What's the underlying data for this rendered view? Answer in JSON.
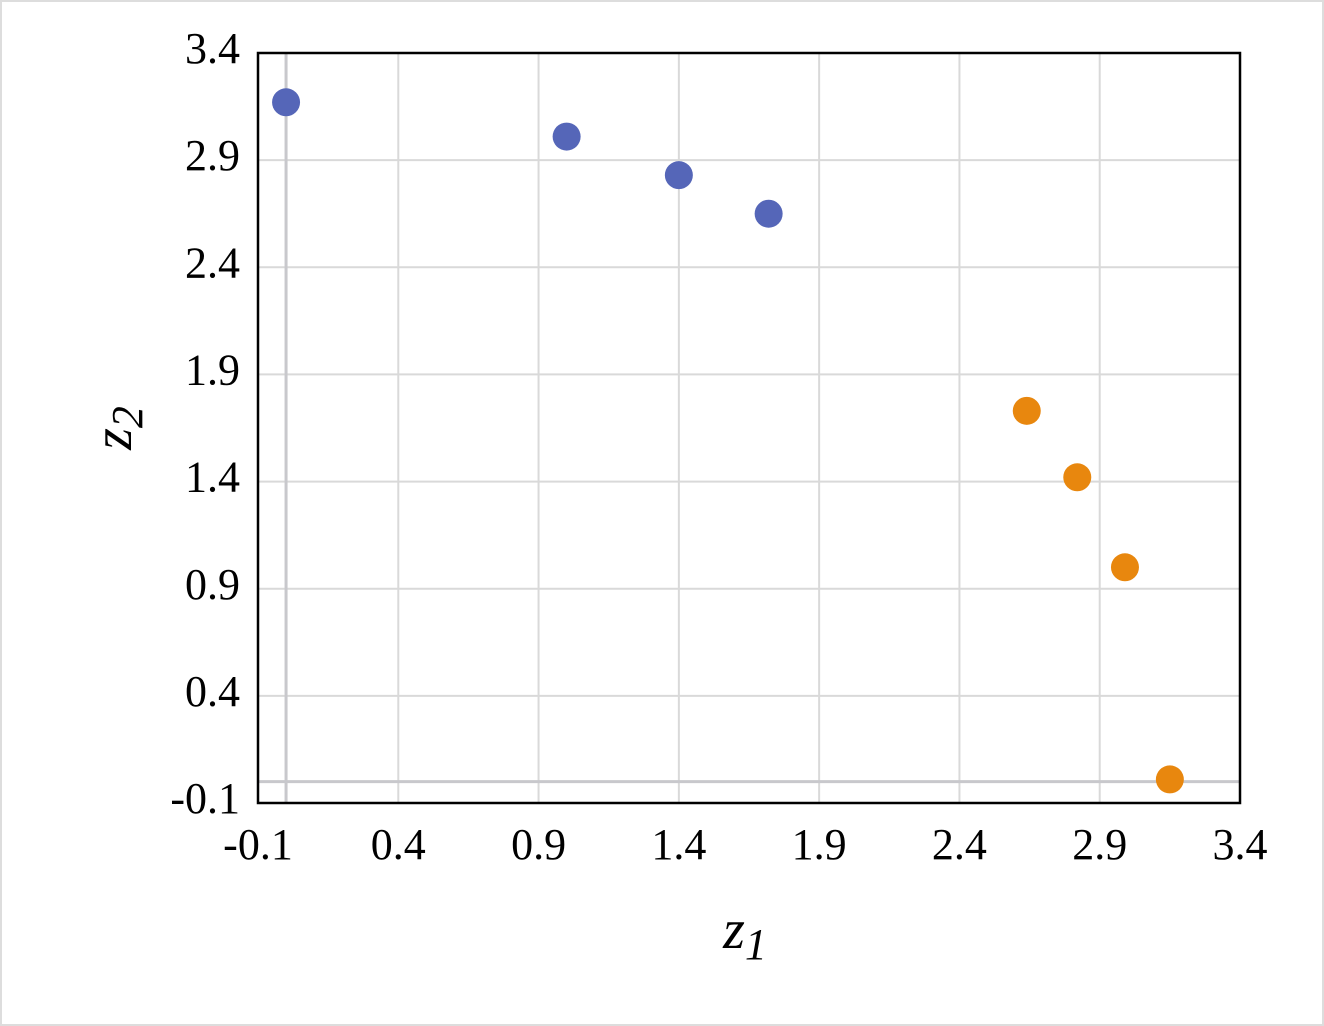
{
  "chart_data": {
    "type": "scatter",
    "x_label": {
      "text": "z",
      "subscript": "1"
    },
    "y_label": {
      "text": "z",
      "subscript": "2"
    },
    "xlim": [
      -0.1,
      3.4
    ],
    "xticks": [
      -0.1,
      0.4,
      0.9,
      1.4,
      1.9,
      2.4,
      2.9,
      3.4
    ],
    "ylim": [
      -0.1,
      3.4
    ],
    "yticks": [
      -0.1,
      0.4,
      0.9,
      1.4,
      1.9,
      2.4,
      2.9,
      3.4
    ],
    "grid": true,
    "zero_lines": true,
    "series": [
      {
        "color": "#5566b8",
        "x": [
          0,
          1.0,
          1.4,
          1.72
        ],
        "y": [
          3.17,
          3.01,
          2.83,
          2.65
        ]
      },
      {
        "color": "#e8870e",
        "x": [
          2.64,
          2.82,
          2.99,
          3.15
        ],
        "y": [
          1.73,
          1.42,
          1.0,
          0.01
        ]
      }
    ]
  }
}
